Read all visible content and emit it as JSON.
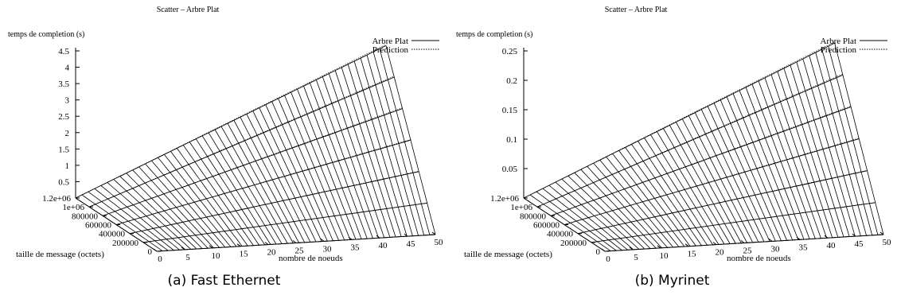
{
  "chart_data": [
    {
      "type": "surface3d",
      "title": "Scatter – Arbre Plat",
      "zlabel": "temps de completion (s)",
      "xlabel": "nombre de noeuds",
      "ylabel": "taille de message (octets)",
      "x_ticks": [
        "0",
        "5",
        "10",
        "15",
        "20",
        "25",
        "30",
        "35",
        "40",
        "45",
        "50"
      ],
      "y_ticks": [
        "0",
        "200000",
        "400000",
        "600000",
        "800000",
        "1e+06",
        "1.2e+06"
      ],
      "z_ticks": [
        "0",
        "0.5",
        "1",
        "1.5",
        "2",
        "2.5",
        "3",
        "3.5",
        "4",
        "4.5"
      ],
      "xlim": [
        0,
        50
      ],
      "ylim": [
        0,
        1200000
      ],
      "zlim": [
        0,
        4.5
      ],
      "z_max_value": 4.15,
      "series": [
        {
          "name": "Arbre Plat",
          "style": "solid"
        },
        {
          "name": "Prediction",
          "style": "dotted"
        }
      ],
      "caption": "(a) Fast Ethernet"
    },
    {
      "type": "surface3d",
      "title": "Scatter – Arbre Plat",
      "zlabel": "temps de completion (s)",
      "xlabel": "nombre de noeuds",
      "ylabel": "taille de message (octets)",
      "x_ticks": [
        "0",
        "5",
        "10",
        "15",
        "20",
        "25",
        "30",
        "35",
        "40",
        "45",
        "50"
      ],
      "y_ticks": [
        "0",
        "200000",
        "400000",
        "600000",
        "800000",
        "1e+06",
        "1.2e+06"
      ],
      "z_ticks": [
        "0",
        "0.05",
        "0.1",
        "0.15",
        "0.2",
        "0.25"
      ],
      "xlim": [
        0,
        50
      ],
      "ylim": [
        0,
        1200000
      ],
      "zlim": [
        0,
        0.25
      ],
      "z_max_value": 0.235,
      "series": [
        {
          "name": "Arbre Plat",
          "style": "solid"
        },
        {
          "name": "Prediction",
          "style": "dotted"
        }
      ],
      "caption": "(b) Myrinet"
    }
  ]
}
